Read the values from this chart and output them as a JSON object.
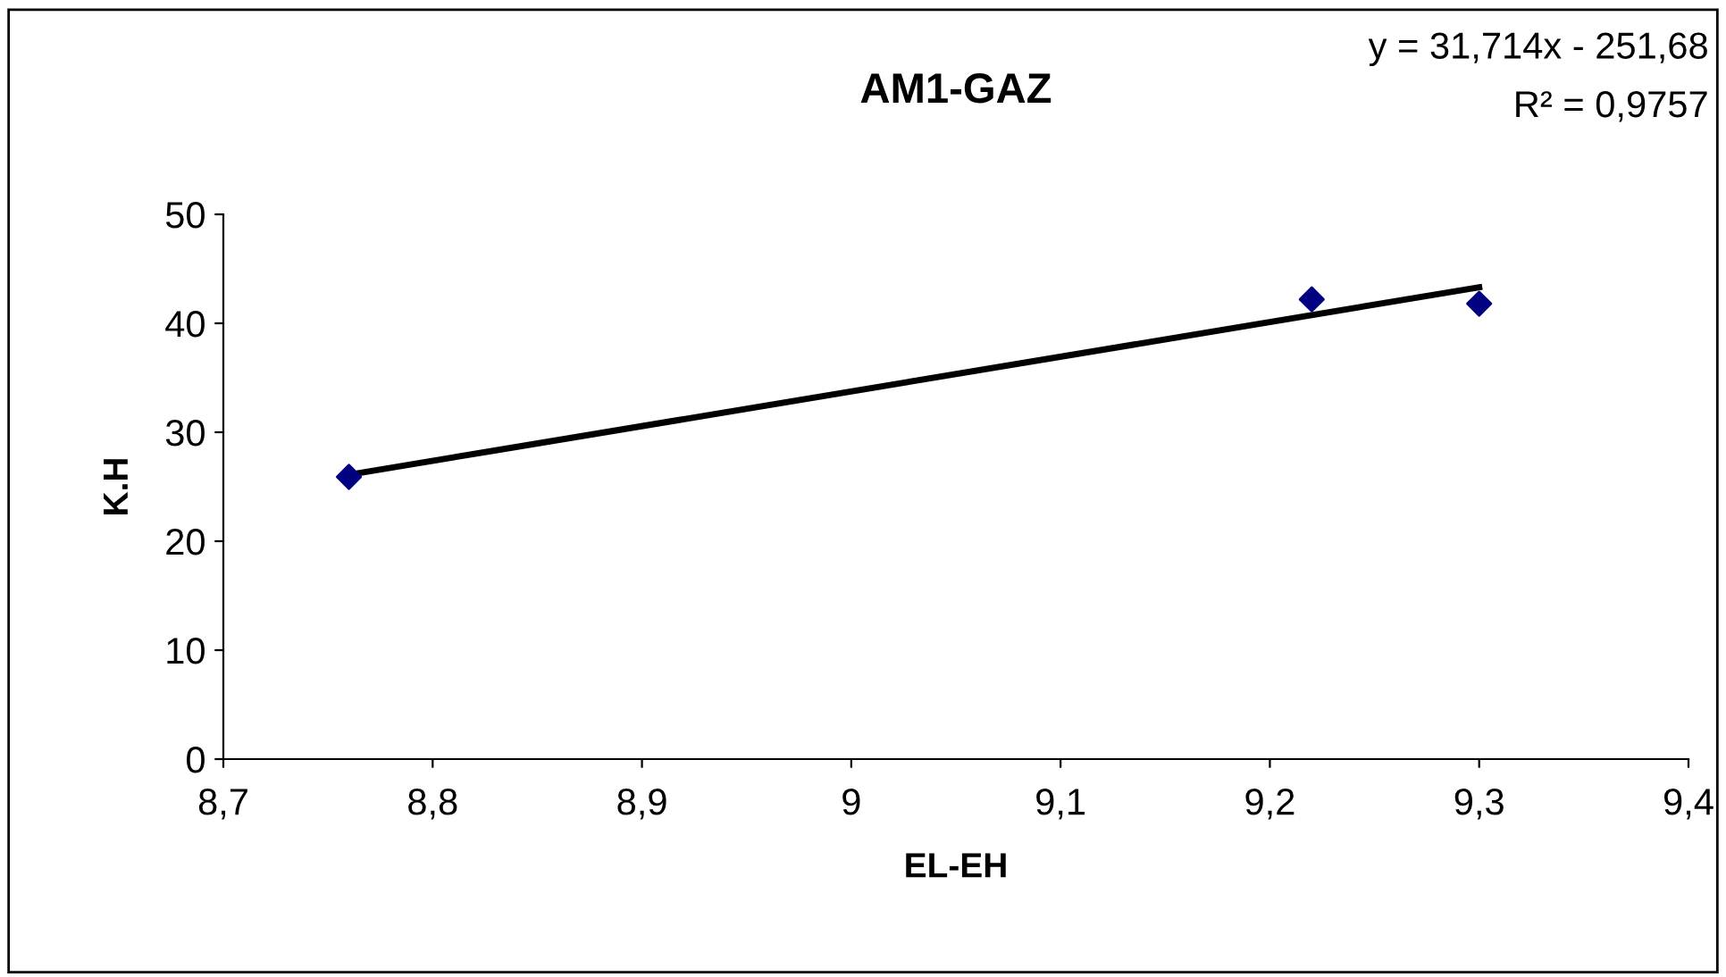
{
  "chart_data": {
    "type": "scatter",
    "title": "AM1-GAZ",
    "xlabel": "EL-EH",
    "ylabel": "K.H",
    "annotations": [
      "y = 31,714x - 251,68",
      "R² = 0,9757"
    ],
    "series": [
      {
        "color": "#000080",
        "marker": "diamond",
        "x": [
          8.76,
          9.22,
          9.3
        ],
        "values": [
          25.9,
          42.2,
          41.8
        ]
      },
      {
        "type": "line",
        "color": "#000000",
        "marker": "none",
        "line_style": "solid",
        "x": [
          8.76,
          9.3
        ],
        "values": [
          26.1,
          43.3
        ]
      }
    ],
    "xlim": [
      8.7,
      9.4
    ],
    "xticks": [
      {
        "value": 8.7,
        "label": "8,7"
      },
      {
        "value": 8.8,
        "label": "8,8"
      },
      {
        "value": 8.9,
        "label": "8,9"
      },
      9,
      {
        "value": 9.1,
        "label": "9,1"
      },
      {
        "value": 9.2,
        "label": "9,2"
      },
      {
        "value": 9.3,
        "label": "9,3"
      },
      {
        "value": 9.4,
        "label": "9,4"
      }
    ],
    "ylim": [
      0,
      50
    ],
    "yticks": [
      0,
      10,
      20,
      30,
      40,
      50
    ],
    "grid": false
  }
}
